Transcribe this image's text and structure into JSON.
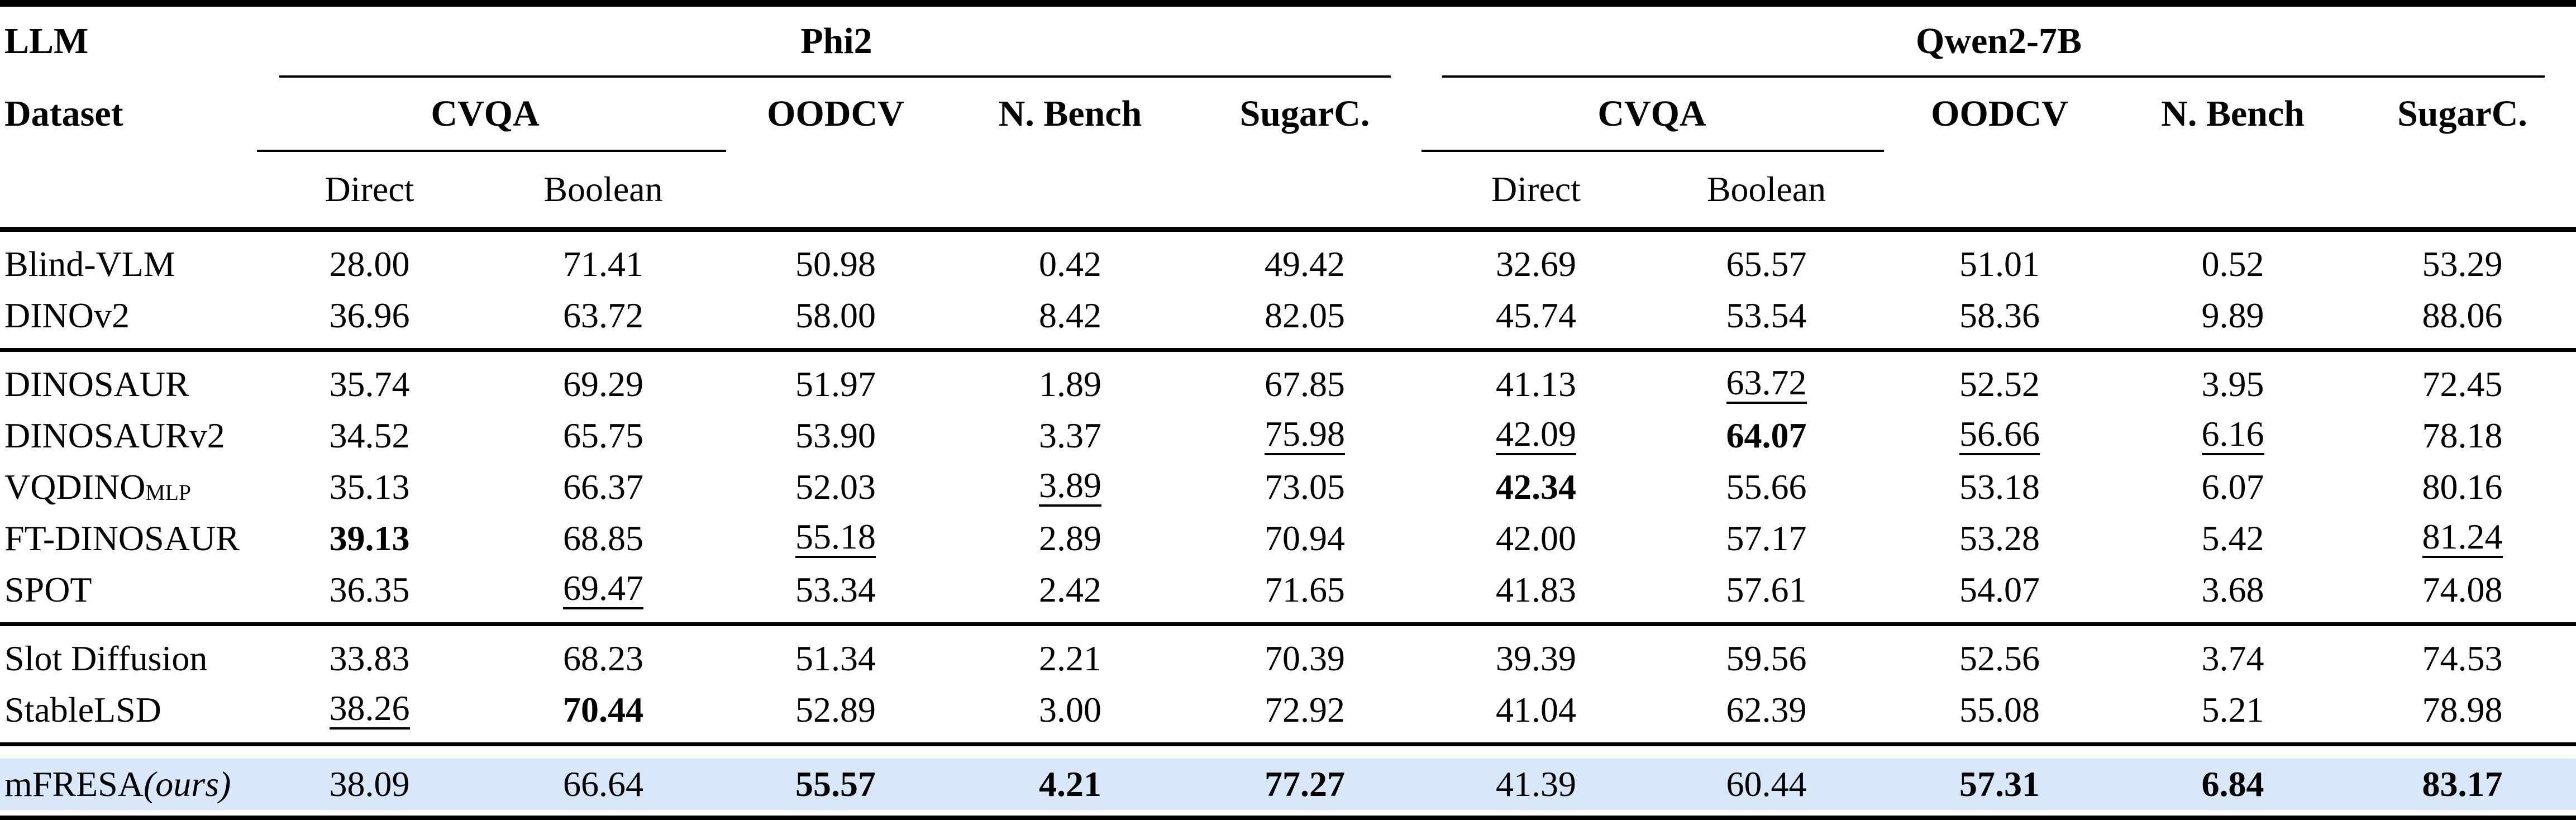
{
  "header": {
    "corner_top": "LLM",
    "corner_bottom": "Dataset",
    "groups": [
      {
        "llm": "Phi2",
        "cvqa": "CVQA",
        "cvqa_subs": [
          "Direct",
          "Boolean"
        ],
        "datasets": [
          "OODCV",
          "N. Bench",
          "SugarC."
        ]
      },
      {
        "llm": "Qwen2-7B",
        "cvqa": "CVQA",
        "cvqa_subs": [
          "Direct",
          "Boolean"
        ],
        "datasets": [
          "OODCV",
          "N. Bench",
          "SugarC."
        ]
      }
    ]
  },
  "body": {
    "highlight_color": "#d9e8f8",
    "groups": [
      {
        "rows": [
          {
            "label": "Blind-VLM",
            "values": [
              {
                "v": "28.00",
                "s": ""
              },
              {
                "v": "71.41",
                "s": ""
              },
              {
                "v": "50.98",
                "s": ""
              },
              {
                "v": "0.42",
                "s": ""
              },
              {
                "v": "49.42",
                "s": ""
              },
              {
                "v": "32.69",
                "s": ""
              },
              {
                "v": "65.57",
                "s": ""
              },
              {
                "v": "51.01",
                "s": ""
              },
              {
                "v": "0.52",
                "s": ""
              },
              {
                "v": "53.29",
                "s": ""
              }
            ]
          },
          {
            "label": "DINOv2",
            "values": [
              {
                "v": "36.96",
                "s": ""
              },
              {
                "v": "63.72",
                "s": ""
              },
              {
                "v": "58.00",
                "s": ""
              },
              {
                "v": "8.42",
                "s": ""
              },
              {
                "v": "82.05",
                "s": ""
              },
              {
                "v": "45.74",
                "s": ""
              },
              {
                "v": "53.54",
                "s": ""
              },
              {
                "v": "58.36",
                "s": ""
              },
              {
                "v": "9.89",
                "s": ""
              },
              {
                "v": "88.06",
                "s": ""
              }
            ]
          }
        ]
      },
      {
        "rows": [
          {
            "label": "DINOSAUR",
            "values": [
              {
                "v": "35.74",
                "s": ""
              },
              {
                "v": "69.29",
                "s": ""
              },
              {
                "v": "51.97",
                "s": ""
              },
              {
                "v": "1.89",
                "s": ""
              },
              {
                "v": "67.85",
                "s": ""
              },
              {
                "v": "41.13",
                "s": ""
              },
              {
                "v": "63.72",
                "s": "u"
              },
              {
                "v": "52.52",
                "s": ""
              },
              {
                "v": "3.95",
                "s": ""
              },
              {
                "v": "72.45",
                "s": ""
              }
            ]
          },
          {
            "label": "DINOSAURv2",
            "values": [
              {
                "v": "34.52",
                "s": ""
              },
              {
                "v": "65.75",
                "s": ""
              },
              {
                "v": "53.90",
                "s": ""
              },
              {
                "v": "3.37",
                "s": ""
              },
              {
                "v": "75.98",
                "s": "u"
              },
              {
                "v": "42.09",
                "s": "u"
              },
              {
                "v": "64.07",
                "s": "b"
              },
              {
                "v": "56.66",
                "s": "u"
              },
              {
                "v": "6.16",
                "s": "u"
              },
              {
                "v": "78.18",
                "s": ""
              }
            ]
          },
          {
            "label": "VQDINO",
            "sub": "MLP",
            "values": [
              {
                "v": "35.13",
                "s": ""
              },
              {
                "v": "66.37",
                "s": ""
              },
              {
                "v": "52.03",
                "s": ""
              },
              {
                "v": "3.89",
                "s": "u"
              },
              {
                "v": "73.05",
                "s": ""
              },
              {
                "v": "42.34",
                "s": "b"
              },
              {
                "v": "55.66",
                "s": ""
              },
              {
                "v": "53.18",
                "s": ""
              },
              {
                "v": "6.07",
                "s": ""
              },
              {
                "v": "80.16",
                "s": ""
              }
            ]
          },
          {
            "label": "FT-DINOSAUR",
            "values": [
              {
                "v": "39.13",
                "s": "b"
              },
              {
                "v": "68.85",
                "s": ""
              },
              {
                "v": "55.18",
                "s": "u"
              },
              {
                "v": "2.89",
                "s": ""
              },
              {
                "v": "70.94",
                "s": ""
              },
              {
                "v": "42.00",
                "s": ""
              },
              {
                "v": "57.17",
                "s": ""
              },
              {
                "v": "53.28",
                "s": ""
              },
              {
                "v": "5.42",
                "s": ""
              },
              {
                "v": "81.24",
                "s": "u"
              }
            ]
          },
          {
            "label": "SPOT",
            "values": [
              {
                "v": "36.35",
                "s": ""
              },
              {
                "v": "69.47",
                "s": "u"
              },
              {
                "v": "53.34",
                "s": ""
              },
              {
                "v": "2.42",
                "s": ""
              },
              {
                "v": "71.65",
                "s": ""
              },
              {
                "v": "41.83",
                "s": ""
              },
              {
                "v": "57.61",
                "s": ""
              },
              {
                "v": "54.07",
                "s": ""
              },
              {
                "v": "3.68",
                "s": ""
              },
              {
                "v": "74.08",
                "s": ""
              }
            ]
          }
        ]
      },
      {
        "rows": [
          {
            "label": "Slot Diffusion",
            "values": [
              {
                "v": "33.83",
                "s": ""
              },
              {
                "v": "68.23",
                "s": ""
              },
              {
                "v": "51.34",
                "s": ""
              },
              {
                "v": "2.21",
                "s": ""
              },
              {
                "v": "70.39",
                "s": ""
              },
              {
                "v": "39.39",
                "s": ""
              },
              {
                "v": "59.56",
                "s": ""
              },
              {
                "v": "52.56",
                "s": ""
              },
              {
                "v": "3.74",
                "s": ""
              },
              {
                "v": "74.53",
                "s": ""
              }
            ]
          },
          {
            "label": "StableLSD",
            "values": [
              {
                "v": "38.26",
                "s": "u"
              },
              {
                "v": "70.44",
                "s": "b"
              },
              {
                "v": "52.89",
                "s": ""
              },
              {
                "v": "3.00",
                "s": ""
              },
              {
                "v": "72.92",
                "s": ""
              },
              {
                "v": "41.04",
                "s": ""
              },
              {
                "v": "62.39",
                "s": ""
              },
              {
                "v": "55.08",
                "s": ""
              },
              {
                "v": "5.21",
                "s": ""
              },
              {
                "v": "78.98",
                "s": ""
              }
            ]
          }
        ]
      },
      {
        "highlight": true,
        "rows": [
          {
            "label": "mFRESA",
            "italic_suffix": "(ours)",
            "values": [
              {
                "v": "38.09",
                "s": ""
              },
              {
                "v": "66.64",
                "s": ""
              },
              {
                "v": "55.57",
                "s": "b"
              },
              {
                "v": "4.21",
                "s": "b"
              },
              {
                "v": "77.27",
                "s": "b"
              },
              {
                "v": "41.39",
                "s": ""
              },
              {
                "v": "60.44",
                "s": ""
              },
              {
                "v": "57.31",
                "s": "b"
              },
              {
                "v": "6.84",
                "s": "b"
              },
              {
                "v": "83.17",
                "s": "b"
              }
            ]
          }
        ]
      }
    ]
  }
}
